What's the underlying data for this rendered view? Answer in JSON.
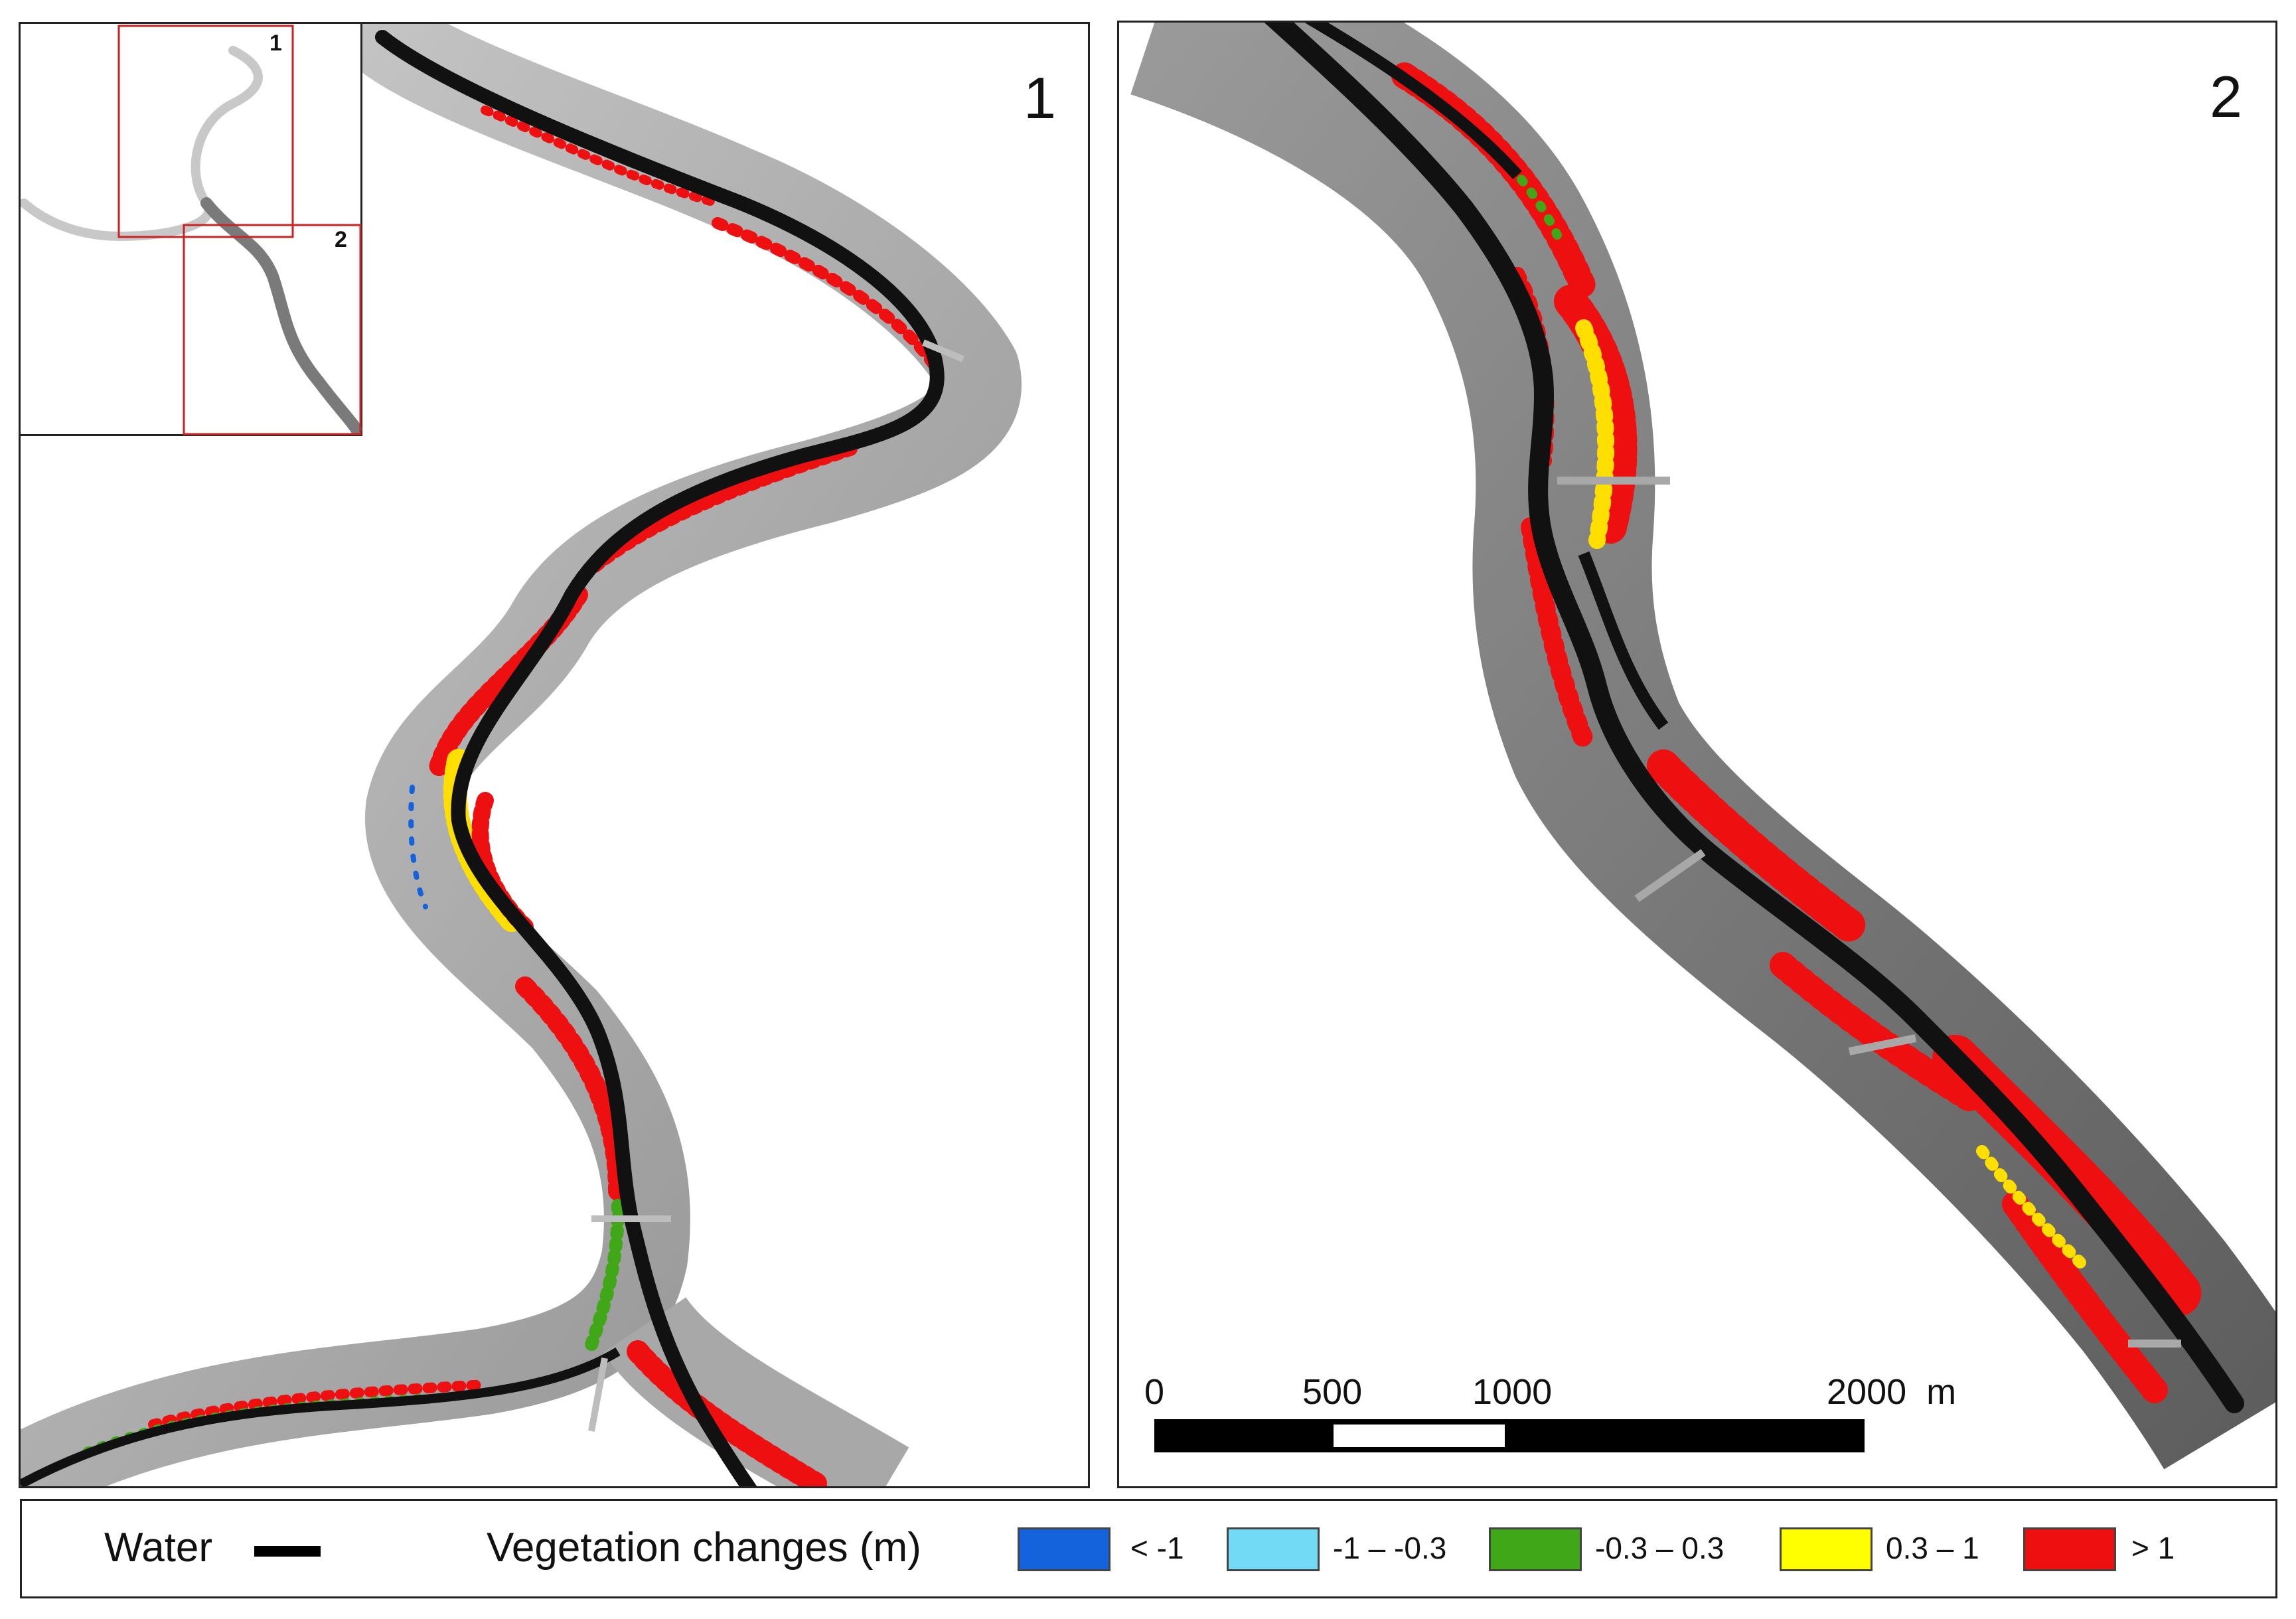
{
  "panels": [
    {
      "number": "1"
    },
    {
      "number": "2"
    }
  ],
  "inset": {
    "labels": [
      "1",
      "2"
    ]
  },
  "scale_bar": {
    "ticks": [
      "0",
      "500",
      "1000",
      "2000  m"
    ],
    "unit": "m"
  },
  "legend": {
    "water_label": "Water",
    "vegetation_title": "Vegetation changes (m)",
    "classes": [
      {
        "label": "< -1",
        "color": "#1463dc"
      },
      {
        "label": "-1 – -0.3",
        "color": "#72daf5"
      },
      {
        "label": "-0.3 – 0.3",
        "color": "#40a818"
      },
      {
        "label": "0.3 – 1",
        "color": "#ffff00"
      },
      {
        "label": "> 1",
        "color": "#ee1010"
      }
    ]
  },
  "colors": {
    "corridor_light": "#b9b9b9",
    "corridor_dark": "#7a7a7a",
    "water": "#111111",
    "inset_box": "#cc2222"
  }
}
